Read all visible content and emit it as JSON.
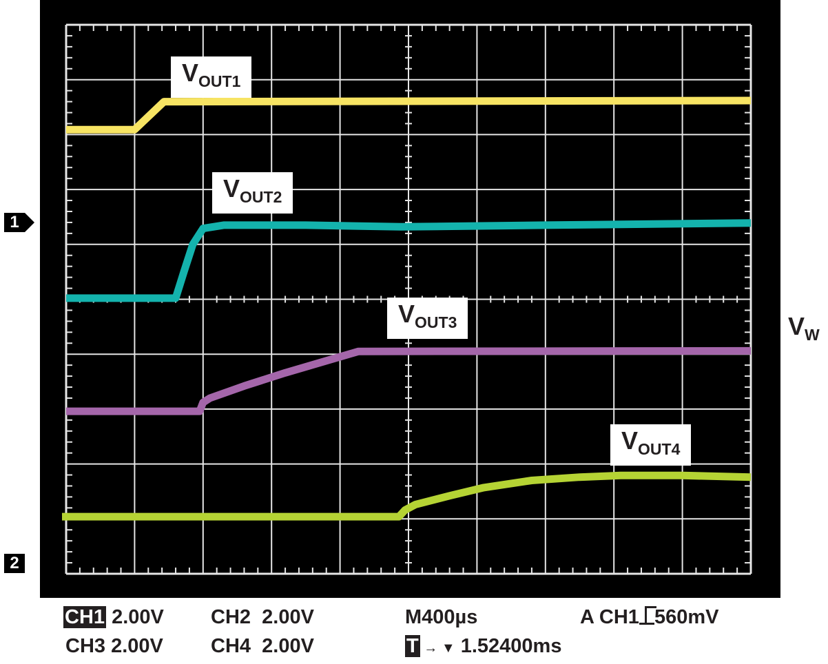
{
  "chart_data": {
    "type": "line",
    "grid": true,
    "x_divisions": 10,
    "y_divisions": 10,
    "xlim": [
      0,
      10
    ],
    "ylim": [
      0,
      10
    ],
    "series": [
      {
        "name": "VOUT1",
        "color": "#f7e463",
        "points": [
          [
            0,
            8.09
          ],
          [
            1.0,
            8.09
          ],
          [
            1.43,
            8.6
          ],
          [
            10,
            8.62
          ]
        ]
      },
      {
        "name": "VOUT2",
        "color": "#14b3ad",
        "points": [
          [
            0,
            5.02
          ],
          [
            1.6,
            5.02
          ],
          [
            1.72,
            5.5
          ],
          [
            1.85,
            6.0
          ],
          [
            2.0,
            6.29
          ],
          [
            2.3,
            6.35
          ],
          [
            3.5,
            6.35
          ],
          [
            4.9,
            6.32
          ],
          [
            7,
            6.35
          ],
          [
            10,
            6.39
          ]
        ]
      },
      {
        "name": "VOUT3",
        "color": "#a466aa",
        "points": [
          [
            0,
            2.96
          ],
          [
            1.95,
            2.96
          ],
          [
            2.0,
            3.12
          ],
          [
            2.1,
            3.2
          ],
          [
            2.6,
            3.42
          ],
          [
            3.2,
            3.66
          ],
          [
            3.8,
            3.88
          ],
          [
            4.27,
            4.05
          ],
          [
            10,
            4.06
          ]
        ]
      },
      {
        "name": "VOUT4",
        "color": "#b5d334",
        "points": [
          [
            -0.06,
            1.04
          ],
          [
            4.86,
            1.04
          ],
          [
            4.95,
            1.16
          ],
          [
            5.1,
            1.26
          ],
          [
            5.6,
            1.42
          ],
          [
            6.1,
            1.57
          ],
          [
            6.8,
            1.7
          ],
          [
            7.5,
            1.76
          ],
          [
            8.1,
            1.79
          ],
          [
            9,
            1.79
          ],
          [
            10,
            1.76
          ]
        ]
      }
    ]
  },
  "labels": {
    "v1": {
      "main": "V",
      "sub": "OUT1"
    },
    "v2": {
      "main": "V",
      "sub": "OUT2"
    },
    "v3": {
      "main": "V",
      "sub": "OUT3"
    },
    "v4": {
      "main": "V",
      "sub": "OUT4"
    },
    "vw": {
      "main": "V",
      "sub": "W"
    }
  },
  "markers": {
    "ch1": "1",
    "ch2": "2"
  },
  "readout": {
    "ch1": "CH1",
    "ch1_scale": "2.00V",
    "ch2": "CH2",
    "ch2_scale": "2.00V",
    "ch3": "CH3",
    "ch3_scale": "2.00V",
    "ch4": "CH4",
    "ch4_scale": "2.00V",
    "timebase": "M400µs",
    "trigger": "A  CH1",
    "trigger_level": "560mV",
    "t_icon": "T",
    "position": "1.52400ms"
  }
}
